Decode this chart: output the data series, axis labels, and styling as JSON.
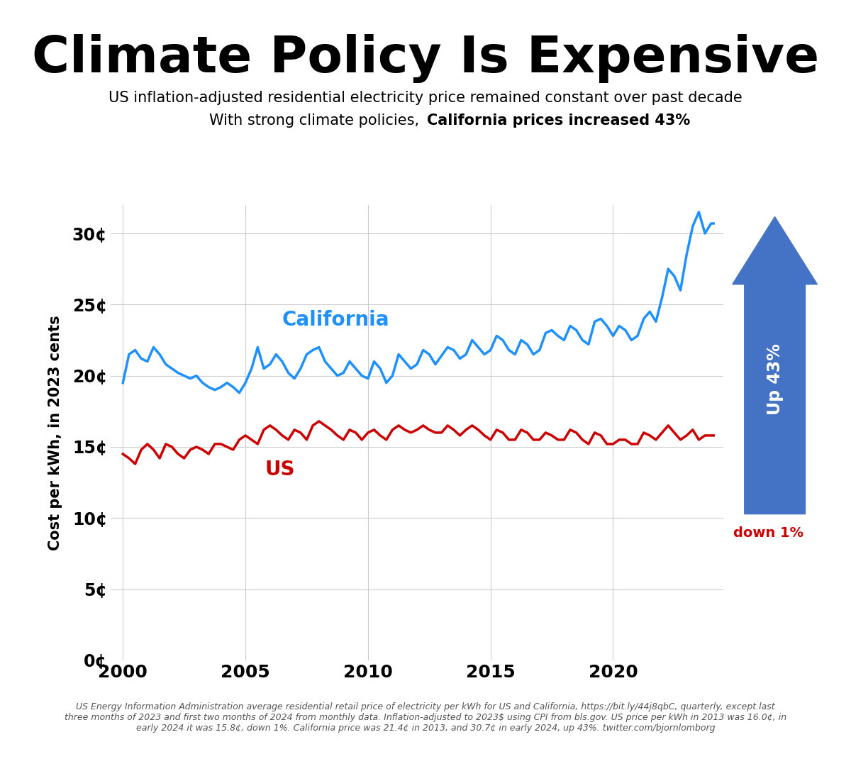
{
  "title": "Climate Policy Is Expensive",
  "subtitle1": "US inflation-adjusted residential electricity price remained constant over past decade",
  "subtitle2_normal": "With strong climate policies, ",
  "subtitle2_bold": "California prices increased 43%",
  "ylabel": "Cost per kWh, in 2023 cents",
  "footer": "US Energy Information Administration average residential retail price of electricity per kWh for US and California, https://bit.ly/44j8qbC, quarterly, except last\nthree months of 2023 and first two months of 2024 from monthly data. Inflation-adjusted to 2023$ using CPI from bls.gov. US price per kWh in 2013 was 16.0¢, in\nearly 2024 it was 15.8¢, down 1%. California price was 21.4¢ in 2013, and 30.7¢ in early 2024, up 43%. twitter.com/bjornlomborg",
  "ca_label": "California",
  "us_label": "US",
  "arrow_label": "Up 43%",
  "us_change_label": "down 1%",
  "ca_color": "#1E90FF",
  "us_color": "#CC0000",
  "arrow_color": "#4472C4",
  "bg_color": "#FFFFFF",
  "grid_color": "#CCCCCC",
  "ylim": [
    0,
    32
  ],
  "yticks": [
    0,
    5,
    10,
    15,
    20,
    25,
    30
  ],
  "xlim": [
    1999.5,
    2024.5
  ],
  "xticks": [
    2000,
    2005,
    2010,
    2015,
    2020
  ],
  "ca_data": {
    "years": [
      2000.0,
      2000.25,
      2000.5,
      2000.75,
      2001.0,
      2001.25,
      2001.5,
      2001.75,
      2002.0,
      2002.25,
      2002.5,
      2002.75,
      2003.0,
      2003.25,
      2003.5,
      2003.75,
      2004.0,
      2004.25,
      2004.5,
      2004.75,
      2005.0,
      2005.25,
      2005.5,
      2005.75,
      2006.0,
      2006.25,
      2006.5,
      2006.75,
      2007.0,
      2007.25,
      2007.5,
      2007.75,
      2008.0,
      2008.25,
      2008.5,
      2008.75,
      2009.0,
      2009.25,
      2009.5,
      2009.75,
      2010.0,
      2010.25,
      2010.5,
      2010.75,
      2011.0,
      2011.25,
      2011.5,
      2011.75,
      2012.0,
      2012.25,
      2012.5,
      2012.75,
      2013.0,
      2013.25,
      2013.5,
      2013.75,
      2014.0,
      2014.25,
      2014.5,
      2014.75,
      2015.0,
      2015.25,
      2015.5,
      2015.75,
      2016.0,
      2016.25,
      2016.5,
      2016.75,
      2017.0,
      2017.25,
      2017.5,
      2017.75,
      2018.0,
      2018.25,
      2018.5,
      2018.75,
      2019.0,
      2019.25,
      2019.5,
      2019.75,
      2020.0,
      2020.25,
      2020.5,
      2020.75,
      2021.0,
      2021.25,
      2021.5,
      2021.75,
      2022.0,
      2022.25,
      2022.5,
      2022.75,
      2023.0,
      2023.25,
      2023.5,
      2023.75,
      2024.0,
      2024.1
    ],
    "values": [
      19.5,
      21.5,
      21.8,
      21.2,
      21.0,
      22.0,
      21.5,
      20.8,
      20.5,
      20.2,
      20.0,
      19.8,
      20.0,
      19.5,
      19.2,
      19.0,
      19.2,
      19.5,
      19.2,
      18.8,
      19.5,
      20.5,
      22.0,
      20.5,
      20.8,
      21.5,
      21.0,
      20.2,
      19.8,
      20.5,
      21.5,
      21.8,
      22.0,
      21.0,
      20.5,
      20.0,
      20.2,
      21.0,
      20.5,
      20.0,
      19.8,
      21.0,
      20.5,
      19.5,
      20.0,
      21.5,
      21.0,
      20.5,
      20.8,
      21.8,
      21.5,
      20.8,
      21.4,
      22.0,
      21.8,
      21.2,
      21.5,
      22.5,
      22.0,
      21.5,
      21.8,
      22.8,
      22.5,
      21.8,
      21.5,
      22.5,
      22.2,
      21.5,
      21.8,
      23.0,
      23.2,
      22.8,
      22.5,
      23.5,
      23.2,
      22.5,
      22.2,
      23.8,
      24.0,
      23.5,
      22.8,
      23.5,
      23.2,
      22.5,
      22.8,
      24.0,
      24.5,
      23.8,
      25.5,
      27.5,
      27.0,
      26.0,
      28.5,
      30.5,
      31.5,
      30.0,
      30.7,
      30.7
    ]
  },
  "us_data": {
    "years": [
      2000.0,
      2000.25,
      2000.5,
      2000.75,
      2001.0,
      2001.25,
      2001.5,
      2001.75,
      2002.0,
      2002.25,
      2002.5,
      2002.75,
      2003.0,
      2003.25,
      2003.5,
      2003.75,
      2004.0,
      2004.25,
      2004.5,
      2004.75,
      2005.0,
      2005.25,
      2005.5,
      2005.75,
      2006.0,
      2006.25,
      2006.5,
      2006.75,
      2007.0,
      2007.25,
      2007.5,
      2007.75,
      2008.0,
      2008.25,
      2008.5,
      2008.75,
      2009.0,
      2009.25,
      2009.5,
      2009.75,
      2010.0,
      2010.25,
      2010.5,
      2010.75,
      2011.0,
      2011.25,
      2011.5,
      2011.75,
      2012.0,
      2012.25,
      2012.5,
      2012.75,
      2013.0,
      2013.25,
      2013.5,
      2013.75,
      2014.0,
      2014.25,
      2014.5,
      2014.75,
      2015.0,
      2015.25,
      2015.5,
      2015.75,
      2016.0,
      2016.25,
      2016.5,
      2016.75,
      2017.0,
      2017.25,
      2017.5,
      2017.75,
      2018.0,
      2018.25,
      2018.5,
      2018.75,
      2019.0,
      2019.25,
      2019.5,
      2019.75,
      2020.0,
      2020.25,
      2020.5,
      2020.75,
      2021.0,
      2021.25,
      2021.5,
      2021.75,
      2022.0,
      2022.25,
      2022.5,
      2022.75,
      2023.0,
      2023.25,
      2023.5,
      2023.75,
      2024.0,
      2024.1
    ],
    "values": [
      14.5,
      14.2,
      13.8,
      14.8,
      15.2,
      14.8,
      14.2,
      15.2,
      15.0,
      14.5,
      14.2,
      14.8,
      15.0,
      14.8,
      14.5,
      15.2,
      15.2,
      15.0,
      14.8,
      15.5,
      15.8,
      15.5,
      15.2,
      16.2,
      16.5,
      16.2,
      15.8,
      15.5,
      16.2,
      16.0,
      15.5,
      16.5,
      16.8,
      16.5,
      16.2,
      15.8,
      15.5,
      16.2,
      16.0,
      15.5,
      16.0,
      16.2,
      15.8,
      15.5,
      16.2,
      16.5,
      16.2,
      16.0,
      16.2,
      16.5,
      16.2,
      16.0,
      16.0,
      16.5,
      16.2,
      15.8,
      16.2,
      16.5,
      16.2,
      15.8,
      15.5,
      16.2,
      16.0,
      15.5,
      15.5,
      16.2,
      16.0,
      15.5,
      15.5,
      16.0,
      15.8,
      15.5,
      15.5,
      16.2,
      16.0,
      15.5,
      15.2,
      16.0,
      15.8,
      15.2,
      15.2,
      15.5,
      15.5,
      15.2,
      15.2,
      16.0,
      15.8,
      15.5,
      16.0,
      16.5,
      16.0,
      15.5,
      15.8,
      16.2,
      15.5,
      15.8,
      15.8,
      15.8
    ]
  }
}
